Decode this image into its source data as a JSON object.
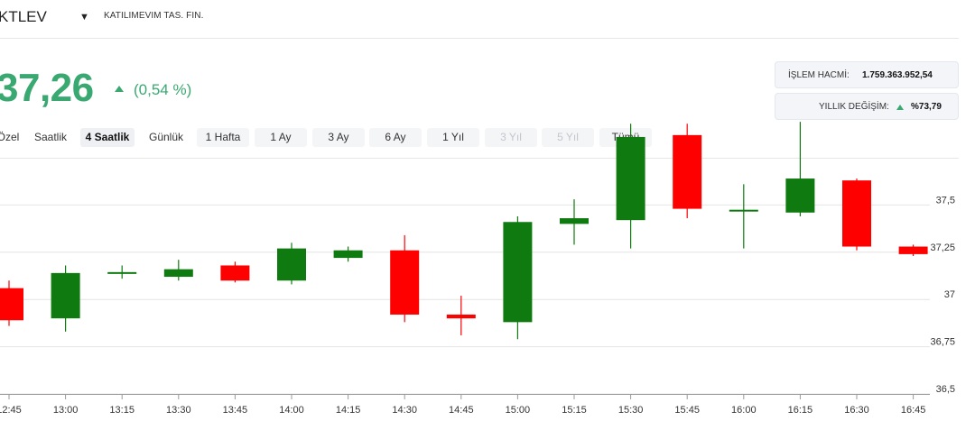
{
  "header": {
    "ticker": "KTLEV",
    "company": "KATILIMEVIM TAS. FIN."
  },
  "quote": {
    "price": "37,26",
    "change_pct": "(0,54 %)"
  },
  "stats": {
    "volume_label": "İŞLEM HACMİ:",
    "volume_value": "1.759.363.952,54",
    "yearly_label": "YILLIK DEĞİŞİM:",
    "yearly_value": "%73,79"
  },
  "tabs": [
    "Özel",
    "Saatlik",
    "4 Saatlik",
    "Günlük",
    "1 Hafta",
    "1 Ay",
    "3 Ay",
    "6 Ay",
    "1 Yıl",
    "3 Yıl",
    "5 Yıl",
    "Tümü"
  ],
  "colors": {
    "up": "#0f7a0f",
    "down": "#ff0000",
    "accent": "#3aa871"
  },
  "chart_data": {
    "type": "candlestick",
    "x": [
      "12:45",
      "13:00",
      "13:15",
      "13:30",
      "13:45",
      "14:00",
      "14:15",
      "14:30",
      "14:45",
      "15:00",
      "15:15",
      "15:30",
      "15:45",
      "16:00",
      "16:15",
      "16:30",
      "16:45"
    ],
    "series": [
      {
        "open": [
          37.06,
          36.9,
          37.14,
          37.12,
          37.18,
          37.1,
          37.22,
          37.26,
          36.92,
          36.88,
          37.4,
          37.42,
          37.87,
          37.47,
          37.46,
          37.63,
          37.28
        ],
        "close": [
          36.89,
          37.14,
          37.14,
          37.16,
          37.1,
          37.27,
          37.26,
          36.92,
          36.9,
          37.41,
          37.43,
          37.86,
          37.48,
          37.47,
          37.64,
          37.28,
          37.24
        ],
        "high": [
          37.1,
          37.18,
          37.18,
          37.21,
          37.2,
          37.3,
          37.28,
          37.34,
          37.02,
          37.44,
          37.53,
          37.93,
          37.93,
          37.61,
          37.94,
          37.64,
          37.29
        ],
        "low": [
          36.86,
          36.83,
          37.11,
          37.1,
          37.09,
          37.08,
          37.2,
          36.88,
          36.81,
          36.79,
          37.29,
          37.27,
          37.43,
          37.27,
          37.44,
          37.26,
          37.23
        ]
      }
    ],
    "yticks": [
      "37,5",
      "37,25",
      "37",
      "36,75",
      "36,5"
    ],
    "ytick_values": [
      37.5,
      37.25,
      37.0,
      36.75,
      36.5
    ],
    "ylim": [
      36.5,
      37.75
    ],
    "grid": true
  }
}
